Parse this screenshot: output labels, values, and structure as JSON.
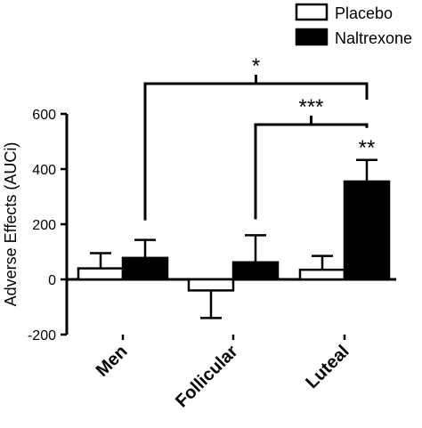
{
  "chart_data": {
    "type": "bar",
    "ylabel": "Adverse Effects  (AUCi)",
    "xlabel": "",
    "title": "",
    "categories": [
      "Men",
      "Follicular",
      "Luteal"
    ],
    "ylim": [
      -200,
      600
    ],
    "yticks": [
      "-200",
      "0",
      "200",
      "400",
      "600"
    ],
    "yticks_values": [
      -200,
      0,
      200,
      400,
      600
    ],
    "legend_position": "top-right",
    "series": [
      {
        "name": "Placebo",
        "values": [
          40,
          -40,
          35
        ],
        "errors": [
          55,
          100,
          50
        ],
        "fill": "#ffffff"
      },
      {
        "name": "Naltrexone",
        "values": [
          78,
          62,
          355
        ],
        "errors": [
          65,
          98,
          78
        ],
        "fill": "#000000"
      }
    ],
    "annotations": [
      {
        "label": "**",
        "target": "Luteal Naltrexone"
      },
      {
        "label": "***",
        "between": [
          "Follicular Naltrexone",
          "Luteal Naltrexone"
        ]
      },
      {
        "label": "*",
        "between": [
          "Men Naltrexone",
          "Luteal Naltrexone"
        ]
      }
    ]
  }
}
